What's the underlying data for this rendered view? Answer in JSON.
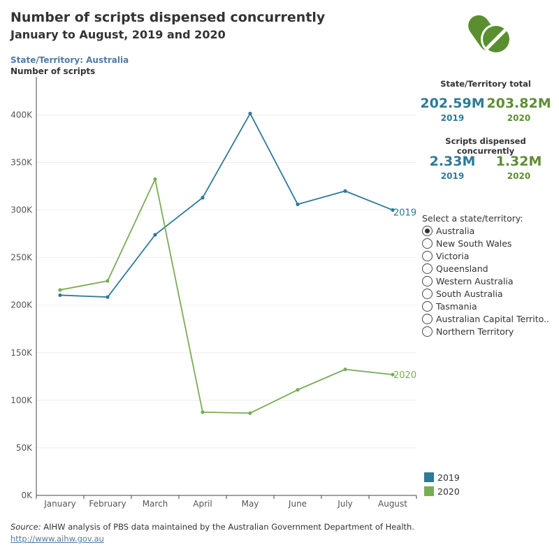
{
  "header": {
    "title": "Number of scripts dispensed concurrently",
    "subtitle": "January to August, 2019 and 2020",
    "state_label": "State/Territory: Australia",
    "y_title": "Number of scripts"
  },
  "logo": {
    "icon": "pills-icon",
    "color": "#5a8f2f"
  },
  "kpis": {
    "total_heading": "State/Territory total",
    "total": [
      {
        "year": "2019",
        "value": "202.59M"
      },
      {
        "year": "2020",
        "value": "203.82M"
      }
    ],
    "concurrent_heading": "Scripts dispensed concurrently",
    "concurrent": [
      {
        "year": "2019",
        "value": "2.33M"
      },
      {
        "year": "2020",
        "value": "1.32M"
      }
    ]
  },
  "selector": {
    "title": "Select a state/territory:",
    "options": [
      "Australia",
      "New South Wales",
      "Victoria",
      "Queensland",
      "Western Australia",
      "South Australia",
      "Tasmania",
      "Australian Capital Territo..",
      "Northern Territory"
    ],
    "selected": "Australia"
  },
  "legend": [
    {
      "label": "2019",
      "color": "#2e7a97"
    },
    {
      "label": "2020",
      "color": "#7aac56"
    }
  ],
  "footer": {
    "source_label": "Source:",
    "source_text": " AIHW analysis of PBS data maintained by the Australian Government Department of Health.",
    "link_text": "http://www.aihw.gov.au"
  },
  "chart_data": {
    "type": "line",
    "categories": [
      "January",
      "February",
      "March",
      "April",
      "May",
      "June",
      "July",
      "August"
    ],
    "series": [
      {
        "name": "2019",
        "color": "#2e7a97",
        "values": [
          210500,
          208500,
          274000,
          313000,
          401500,
          306000,
          320000,
          300000
        ]
      },
      {
        "name": "2020",
        "color": "#7aac56",
        "values": [
          216000,
          225500,
          332500,
          87500,
          86500,
          111000,
          132500,
          127000
        ]
      }
    ],
    "ylim": [
      0,
      440000
    ],
    "yticks": [
      0,
      50000,
      100000,
      150000,
      200000,
      250000,
      300000,
      350000,
      400000
    ],
    "ytick_labels": [
      "0K",
      "50K",
      "100K",
      "150K",
      "200K",
      "250K",
      "300K",
      "350K",
      "400K"
    ],
    "grid": true,
    "end_labels": true
  }
}
